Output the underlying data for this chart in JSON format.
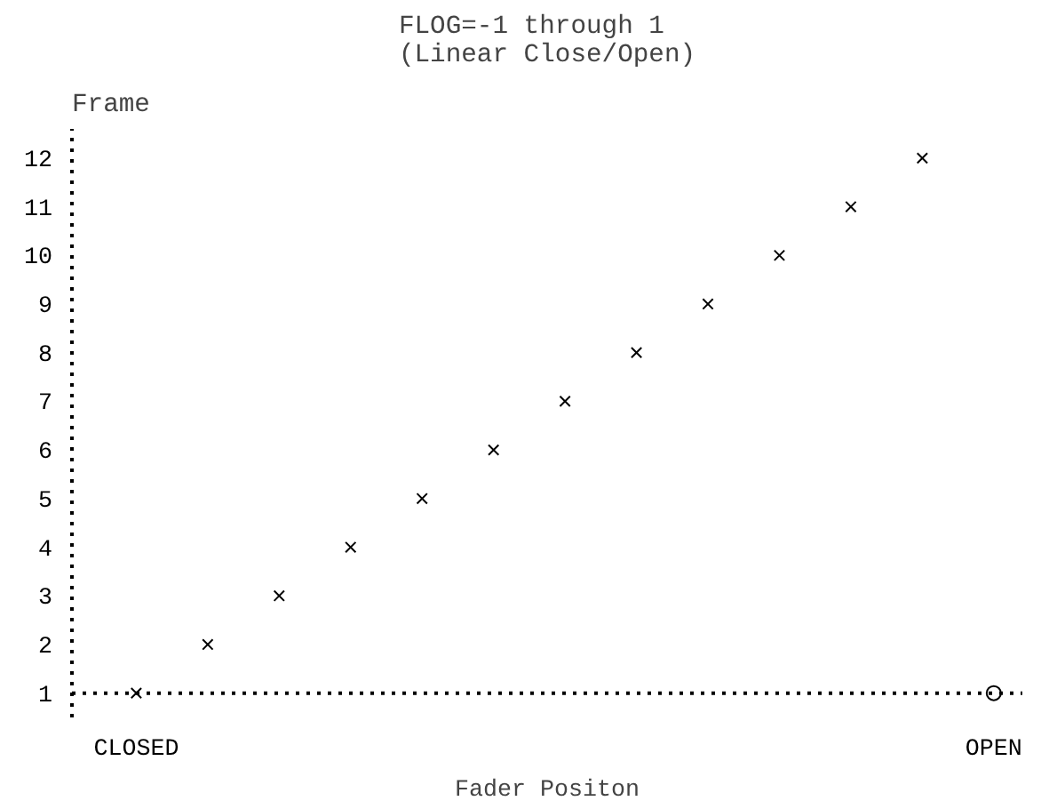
{
  "chart_data": {
    "type": "scatter",
    "title": "FLOG=-1 through 1\n(Linear Close/Open)",
    "ylabel": "Frame",
    "xlabel": "Fader Positon",
    "categories": [
      "CLOSED",
      null,
      null,
      null,
      null,
      null,
      null,
      null,
      null,
      null,
      null,
      null,
      "OPEN"
    ],
    "series": [
      {
        "color": "#000000",
        "marker": "cross",
        "values": [
          1,
          2,
          3,
          4,
          5,
          6,
          7,
          8,
          9,
          10,
          11,
          12,
          null
        ]
      },
      {
        "color": "#000000",
        "marker": "circle",
        "values": [
          null,
          null,
          null,
          null,
          null,
          null,
          null,
          null,
          null,
          null,
          null,
          null,
          1
        ]
      }
    ],
    "ylim": [
      0.5,
      12.6
    ],
    "yticks": [
      1,
      2,
      3,
      4,
      5,
      6,
      7,
      8,
      9,
      10,
      11,
      12
    ],
    "ref_lines": [
      {
        "axis": "y",
        "value": 1,
        "line_style": "dotted"
      }
    ],
    "grid": false
  }
}
